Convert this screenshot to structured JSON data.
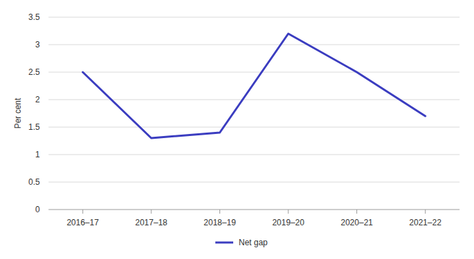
{
  "chart_data": {
    "type": "line",
    "categories": [
      "2016–17",
      "2017–18",
      "2018–19",
      "2019–20",
      "2020–21",
      "2021–22"
    ],
    "series": [
      {
        "name": "Net gap",
        "color": "#3b3dc0",
        "values": [
          2.5,
          1.3,
          1.4,
          3.2,
          2.5,
          1.7
        ]
      }
    ],
    "y_label": "Per cent",
    "ylim": [
      0,
      3.5
    ],
    "yticks": [
      0,
      0.5,
      1,
      1.5,
      2,
      2.5,
      3,
      3.5
    ],
    "grid": true,
    "legend": "bottom"
  }
}
